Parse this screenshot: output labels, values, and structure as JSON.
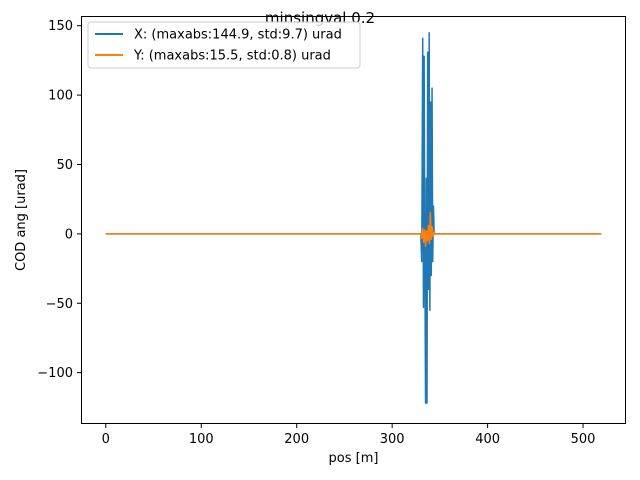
{
  "chart_data": {
    "type": "line",
    "title": "minsingval 0.2",
    "xlabel": "pos [m]",
    "ylabel": "COD ang [urad]",
    "xlim": [
      -26,
      545
    ],
    "ylim": [
      -137,
      157
    ],
    "xticks": [
      0,
      100,
      200,
      300,
      400,
      500
    ],
    "yticks": [
      -100,
      -50,
      0,
      50,
      100,
      150
    ],
    "xtick_labels": [
      "0",
      "100",
      "200",
      "300",
      "400",
      "500"
    ],
    "ytick_labels": [
      "−100",
      "−50",
      "0",
      "50",
      "100",
      "150"
    ],
    "legend": {
      "placement": "upper-left"
    },
    "series": [
      {
        "name": "X: (maxabs:144.9, std:9.7) urad",
        "color": "#1f77b4",
        "x": [
          0,
          330,
          331,
          332,
          332.8,
          333.5,
          334.2,
          335,
          335.8,
          336.5,
          337.2,
          338,
          338.8,
          339.5,
          340.2,
          341,
          341.8,
          342.5,
          343.3,
          344,
          345,
          519
        ],
        "y": [
          0,
          0,
          -20,
          141,
          -53,
          128,
          -10,
          -122,
          40,
          -122,
          131,
          -40,
          144.9,
          -55,
          95,
          -30,
          105,
          -20,
          20,
          0,
          0,
          0
        ]
      },
      {
        "name": "Y: (maxabs:15.5, std:0.8) urad",
        "color": "#ff7f0e",
        "x": [
          0,
          330,
          331,
          332,
          333,
          334,
          335,
          336,
          337,
          338,
          339,
          340,
          341,
          342,
          343,
          344,
          345,
          519
        ],
        "y": [
          0,
          0,
          -3,
          4,
          -6,
          3,
          -9,
          2,
          -5,
          6,
          -7,
          15.5,
          -4,
          5,
          -2,
          1,
          0,
          0
        ]
      }
    ]
  }
}
